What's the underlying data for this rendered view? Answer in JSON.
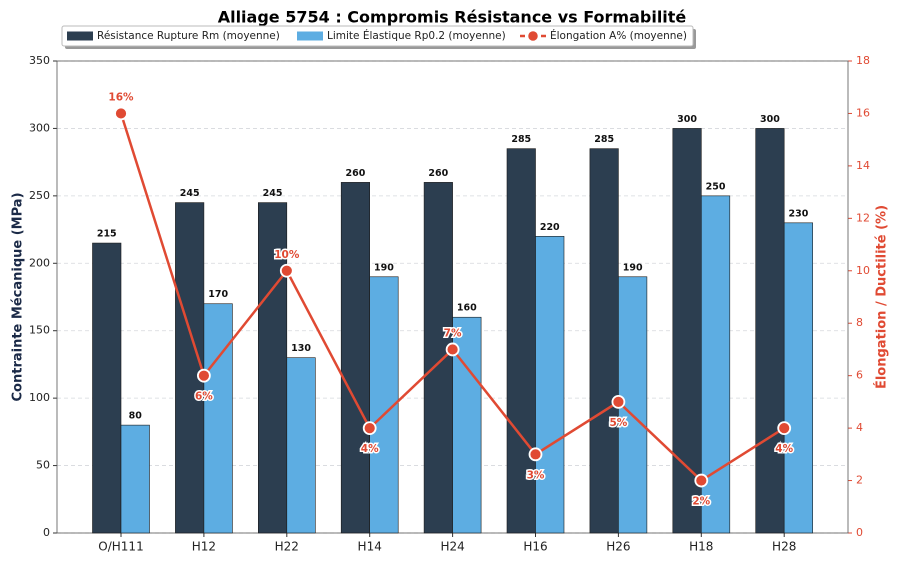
{
  "chart_data": {
    "type": "bar",
    "title": "Alliage 5754 : Compromis Résistance vs Formabilité",
    "categories": [
      "O/H111",
      "H12",
      "H22",
      "H14",
      "H24",
      "H16",
      "H26",
      "H18",
      "H28"
    ],
    "y_label": "Contrainte Mécanique (MPa)",
    "y2_label": "Élongation / Ductilité (%)",
    "ylim": [
      0,
      350
    ],
    "yticks": [
      0,
      50,
      100,
      150,
      200,
      250,
      300,
      350
    ],
    "y2lim": [
      0,
      18
    ],
    "y2ticks": [
      0,
      2,
      4,
      6,
      8,
      10,
      12,
      14,
      16,
      18
    ],
    "grid": true,
    "legend": "top",
    "series": [
      {
        "name": "Résistance Rupture Rm (moyenne)",
        "type": "bar",
        "color": "#2c3e50",
        "values": [
          215,
          245,
          245,
          260,
          260,
          285,
          285,
          300,
          300
        ]
      },
      {
        "name": "Limite Élastique Rp0.2 (moyenne)",
        "type": "bar",
        "color": "#5dade2",
        "values": [
          80,
          170,
          130,
          190,
          160,
          220,
          190,
          250,
          230
        ]
      },
      {
        "name": "Élongation A% (moyenne)",
        "type": "line",
        "axis": "y2",
        "color": "#e04a33",
        "values": [
          16,
          6,
          10,
          4,
          7,
          3,
          5,
          2,
          4
        ],
        "value_labels": [
          "16%",
          "6%",
          "10%",
          "4%",
          "7%",
          "3%",
          "5%",
          "2%",
          "4%"
        ]
      }
    ]
  }
}
